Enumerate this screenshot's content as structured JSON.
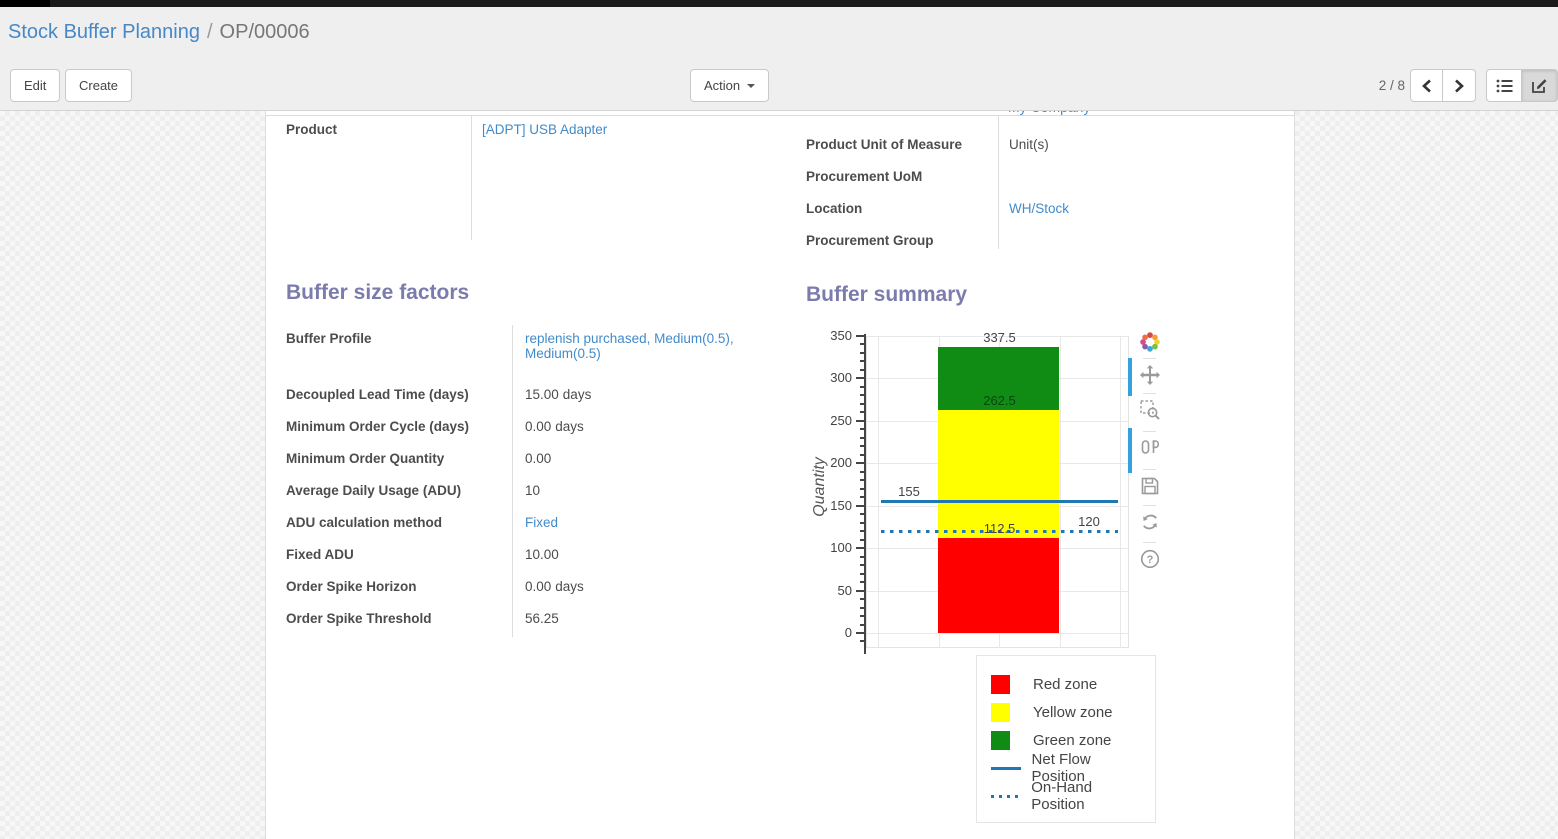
{
  "breadcrumb": {
    "parent": "Stock Buffer Planning",
    "separator": "/",
    "current": "OP/00006"
  },
  "control_panel": {
    "edit_label": "Edit",
    "create_label": "Create",
    "action_label": "Action",
    "pager_value": "2 / 8",
    "icons": [
      "prev-icon",
      "next-icon",
      "list-view-icon",
      "form-view-icon",
      "caret-down-icon"
    ]
  },
  "sheet": {
    "clipped_top_value": "My Company",
    "product_group": {
      "left": [
        {
          "label": "Product",
          "value": "[ADPT] USB Adapter",
          "link": true
        }
      ],
      "right": [
        {
          "label": "Product Unit of Measure",
          "value": "Unit(s)",
          "link": false
        },
        {
          "label": "Procurement UoM",
          "value": "",
          "link": false
        },
        {
          "label": "Location",
          "value": "WH/Stock",
          "link": true
        },
        {
          "label": "Procurement Group",
          "value": "",
          "link": false
        }
      ]
    },
    "factors": {
      "title": "Buffer size factors",
      "rows": [
        {
          "label": "Buffer Profile",
          "value": "replenish purchased, Medium(0.5), Medium(0.5)",
          "link": true
        },
        {
          "label": "Decoupled Lead Time (days)",
          "value": "15.00",
          "suffix": "days"
        },
        {
          "label": "Minimum Order Cycle (days)",
          "value": "0.00",
          "suffix": "days"
        },
        {
          "label": "Minimum Order Quantity",
          "value": "0.00"
        },
        {
          "label": "Average Daily Usage (ADU)",
          "value": "10"
        },
        {
          "label": "ADU calculation method",
          "value": "Fixed",
          "link": true
        },
        {
          "label": "Fixed ADU",
          "value": "10.00"
        },
        {
          "label": "Order Spike Horizon",
          "value": "0.00",
          "suffix": "days"
        },
        {
          "label": "Order Spike Threshold",
          "value": "56.25"
        }
      ]
    },
    "summary_title": "Buffer summary"
  },
  "chart_data": {
    "type": "bar",
    "title": "Buffer summary",
    "ylabel": "Quantity",
    "ylim": [
      0,
      350
    ],
    "ytick_step": 50,
    "yminortick_step": 10,
    "grid": true,
    "zones": [
      {
        "name": "Red zone",
        "from": 0,
        "to": 112.5,
        "color": "#ff0000"
      },
      {
        "name": "Yellow zone",
        "from": 112.5,
        "to": 262.5,
        "color": "#ffff00"
      },
      {
        "name": "Green zone",
        "from": 262.5,
        "to": 337.5,
        "color": "#108c14"
      }
    ],
    "lines": [
      {
        "name": "Net Flow Position",
        "value": 155,
        "style": "solid",
        "color": "#1f77b4"
      },
      {
        "name": "On-Hand Position",
        "value": 120,
        "style": "dotted",
        "color": "#1f77b4"
      }
    ],
    "annotations": [
      {
        "text": "337.5",
        "v": 337.5,
        "anchor": "bar",
        "color": "#444444"
      },
      {
        "text": "262.5",
        "v": 262.5,
        "anchor": "bar",
        "color": "rgba(0,0,0,0.5)"
      },
      {
        "text": "155",
        "v": 155,
        "anchor": "left",
        "color": "#444444"
      },
      {
        "text": "112.5",
        "v": 112.5,
        "anchor": "bar",
        "color": "#444444"
      },
      {
        "text": "120",
        "v": 120,
        "anchor": "right",
        "color": "#444444"
      }
    ],
    "legend": {
      "position": "below-right",
      "entries": [
        {
          "label": "Red zone",
          "swatch": "square",
          "color": "#ff0000"
        },
        {
          "label": "Yellow zone",
          "swatch": "square",
          "color": "#ffff00"
        },
        {
          "label": "Green zone",
          "swatch": "square",
          "color": "#108c14"
        },
        {
          "label": "Net Flow Position",
          "swatch": "line",
          "color": "#1f77b4"
        },
        {
          "label": "On-Hand Position",
          "swatch": "dotted",
          "color": "#1f77b4"
        }
      ]
    },
    "modebar_icons": [
      "plotly-logo-icon",
      "pan-icon",
      "box-zoom-icon",
      "compare-hover-icon",
      "save-icon",
      "reset-axes-icon",
      "help-icon"
    ]
  }
}
